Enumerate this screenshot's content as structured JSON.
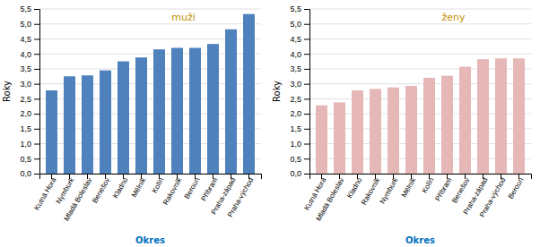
{
  "chart_data": [
    {
      "type": "bar",
      "title": "muži",
      "categories": [
        "Kutná Hora",
        "Nymburk",
        "Mladá Boleslav",
        "Benešov",
        "Kladno",
        "Mělník",
        "Kolín",
        "Rakovník",
        "Beroun",
        "Příbram",
        "Praha-západ",
        "Praha-východ"
      ],
      "values": [
        2.78,
        3.25,
        3.28,
        3.45,
        3.75,
        3.88,
        4.15,
        4.2,
        4.2,
        4.33,
        4.82,
        5.33
      ],
      "color": "#4f81bd",
      "xlabel": "Okres",
      "ylabel": "Roky",
      "ylim": [
        0,
        5.5
      ],
      "yticks": [
        {
          "value": 0.0,
          "label": "0,0"
        },
        {
          "value": 0.5,
          "label": "0,5"
        },
        {
          "value": 1.0,
          "label": "1,0"
        },
        {
          "value": 1.5,
          "label": "1,5"
        },
        {
          "value": 2.0,
          "label": "2,0"
        },
        {
          "value": 2.5,
          "label": "2,5"
        },
        {
          "value": 3.0,
          "label": "3,0"
        },
        {
          "value": 3.5,
          "label": "3,5"
        },
        {
          "value": 4.0,
          "label": "4,0"
        },
        {
          "value": 4.5,
          "label": "4,5"
        },
        {
          "value": 5.0,
          "label": "5,0"
        },
        {
          "value": 5.5,
          "label": "5,5"
        }
      ],
      "grid": true
    },
    {
      "type": "bar",
      "title": "ženy",
      "categories": [
        "Kutná Hora",
        "Mladá Boleslav",
        "Kladno",
        "Rakovník",
        "Nymburk",
        "Mělník",
        "Kolín",
        "Příbram",
        "Benešov",
        "Praha-západ",
        "Praha-východ",
        "Beroun"
      ],
      "values": [
        2.28,
        2.38,
        2.78,
        2.83,
        2.88,
        2.93,
        3.2,
        3.27,
        3.57,
        3.82,
        3.85,
        3.85
      ],
      "color": "#e5b8b7",
      "xlabel": "Okres",
      "ylabel": "Roky",
      "ylim": [
        0,
        5.5
      ],
      "yticks": [
        {
          "value": 0.0,
          "label": "0,0"
        },
        {
          "value": 0.5,
          "label": "0,5"
        },
        {
          "value": 1.0,
          "label": "1,0"
        },
        {
          "value": 1.5,
          "label": "1,5"
        },
        {
          "value": 2.0,
          "label": "2,0"
        },
        {
          "value": 2.5,
          "label": "2,5"
        },
        {
          "value": 3.0,
          "label": "3,0"
        },
        {
          "value": 3.5,
          "label": "3,5"
        },
        {
          "value": 4.0,
          "label": "4,0"
        },
        {
          "value": 4.5,
          "label": "4,5"
        },
        {
          "value": 5.0,
          "label": "5,0"
        },
        {
          "value": 5.5,
          "label": "5,5"
        }
      ],
      "grid": true
    }
  ]
}
